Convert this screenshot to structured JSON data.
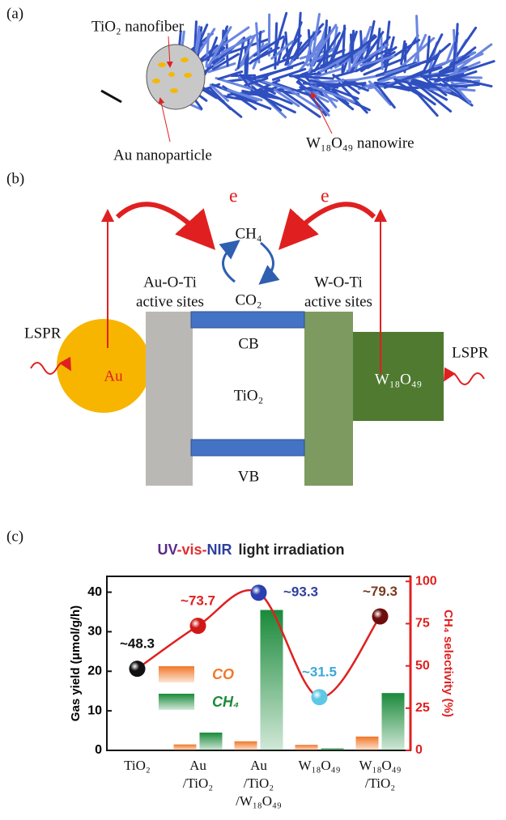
{
  "panel_a": {
    "label": "(a)",
    "nanofiber": "TiO₂ nanofiber",
    "nanoparticle": "Au nanoparticle",
    "nanowire": "W₁₈O₄₉ nanowire"
  },
  "panel_b": {
    "label": "(b)",
    "electron_left": "e",
    "electron_right": "e",
    "ch4": "CH₄",
    "co2": "CO₂",
    "au_sites": [
      "Au-O-Ti",
      "active sites"
    ],
    "w_sites": [
      "W-O-Ti",
      "active sites"
    ],
    "lspr_left": "LSPR",
    "lspr_right": "LSPR",
    "au": "Au",
    "cb": "CB",
    "tio2": "TiO₂",
    "vb": "VB",
    "w18o49": "W₁₈O₄₉"
  },
  "panel_c": {
    "label": "(c)"
  },
  "chart_data": {
    "type": "bar",
    "title_parts": [
      {
        "text": "UV",
        "color": "#5b2a86"
      },
      {
        "text": "-vis-",
        "color": "#e03030"
      },
      {
        "text": "NIR",
        "color": "#2e3f9e"
      },
      {
        "text": "light irradiation",
        "color": "#222222"
      }
    ],
    "categories": [
      "TiO₂",
      "Au\n/TiO₂",
      "Au\n/TiO₂\n/W₁₈O₄₉",
      "W₁₈O₄₉",
      "W₁₈O₄₉\n/TiO₂"
    ],
    "ylabel": "Gas yield (μmol/g/h)",
    "y2label": "CH₄ selectivity (%)",
    "ylim": [
      0,
      44
    ],
    "yticks": [
      0,
      10,
      20,
      30,
      40
    ],
    "y2lim": [
      0,
      103
    ],
    "y2ticks": [
      0,
      25,
      50,
      75,
      100
    ],
    "y2color": "#e02020",
    "series": [
      {
        "name": "CO",
        "color": "#f07828",
        "values": [
          0,
          1.5,
          2.3,
          1.4,
          3.5
        ]
      },
      {
        "name": "CH₄",
        "color": "#1a8a3a",
        "values": [
          0,
          4.5,
          35.5,
          0.5,
          14.5
        ]
      },
      {
        "type": "line",
        "axis": "y2",
        "color": "#e02020",
        "values": [
          48.3,
          73.7,
          93.3,
          31.5,
          79.3
        ],
        "value_labels": [
          "~48.3",
          "~73.7",
          "~93.3",
          "~31.5",
          "~79.3"
        ],
        "label_colors": [
          "#111111",
          "#e02020",
          "#2e3f9e",
          "#3aa7d8",
          "#7a3b1e"
        ],
        "marker_colors": [
          "#111111",
          "#d01818",
          "#2b3fb0",
          "#5cc8e6",
          "#6e0d0d"
        ]
      }
    ]
  }
}
